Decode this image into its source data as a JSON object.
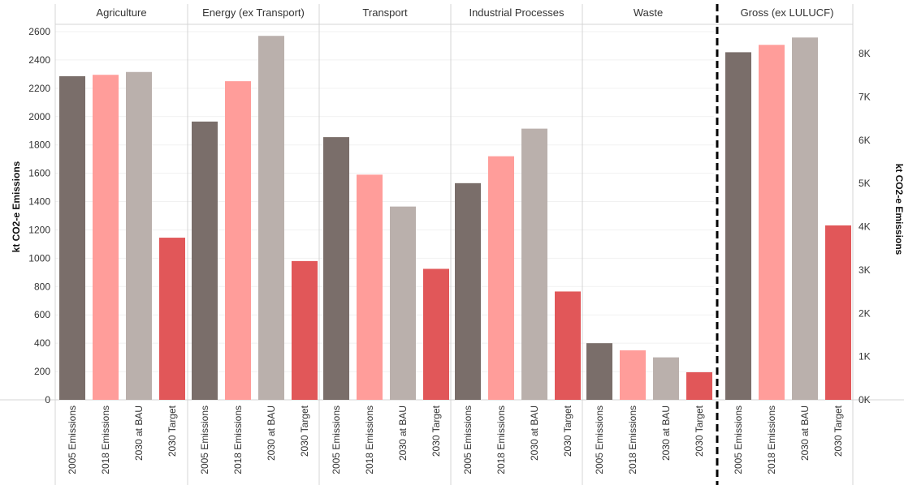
{
  "chart_data": {
    "type": "bar",
    "categories": [
      "2005 Emissions",
      "2018 Emissions",
      "2030 at BAU",
      "2030 Target"
    ],
    "colors": [
      "#7a6e6a",
      "#ff9d9a",
      "#bab0ac",
      "#e15759"
    ],
    "left_axis": {
      "label": "kt CO2-e Emissions",
      "ylim": [
        0,
        2600
      ],
      "ticks": [
        "0",
        "200",
        "400",
        "600",
        "800",
        "1000",
        "1200",
        "1400",
        "1600",
        "1800",
        "2000",
        "2200",
        "2400",
        "2600"
      ]
    },
    "right_axis": {
      "label": "kt CO2-e Emissions",
      "ylim": [
        0,
        8500
      ],
      "ticks": [
        "0K",
        "1K",
        "2K",
        "3K",
        "4K",
        "5K",
        "6K",
        "7K",
        "8K"
      ]
    },
    "panels": [
      {
        "name": "Agriculture",
        "axis": "left",
        "values": [
          2285,
          2295,
          2315,
          1145
        ]
      },
      {
        "name": "Energy (ex Transport)",
        "axis": "left",
        "values": [
          1965,
          2250,
          2570,
          980
        ]
      },
      {
        "name": "Transport",
        "axis": "left",
        "values": [
          1855,
          1590,
          1365,
          925
        ]
      },
      {
        "name": "Industrial Processes",
        "axis": "left",
        "values": [
          1530,
          1720,
          1915,
          765
        ]
      },
      {
        "name": "Waste",
        "axis": "left",
        "values": [
          400,
          350,
          300,
          195
        ]
      },
      {
        "name": "Gross (ex LULUCF)",
        "axis": "right",
        "values": [
          8030,
          8200,
          8370,
          4030
        ]
      }
    ],
    "grid": true
  }
}
